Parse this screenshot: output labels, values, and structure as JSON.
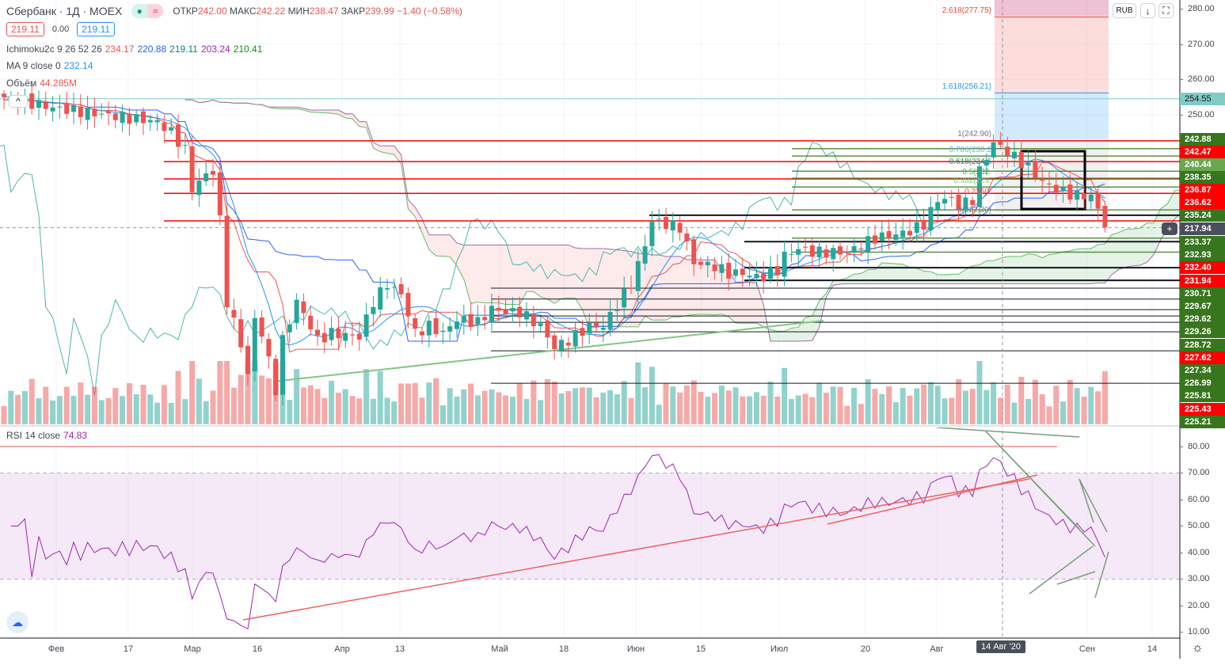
{
  "header": {
    "symbol": "Сбербанк · 1Д · MOEX",
    "open_label": "ОТКР",
    "open": "242.00",
    "high_label": "МАКС",
    "high": "242.22",
    "low_label": "МИН",
    "low": "238.47",
    "close_label": "ЗАКР",
    "close": "239.99",
    "change": "−1.40 (−0.58%)",
    "sell": "219.11",
    "spread": "0.00",
    "buy": "219.11"
  },
  "indicators": {
    "ichimoku": {
      "name": "Ichimoku2c 9 26 52 26",
      "values": [
        "234.17",
        "220.88",
        "219.11",
        "203.24",
        "210.41"
      ]
    },
    "ma": {
      "name": "MA 9 close 0",
      "value": "232.14"
    },
    "volume": {
      "name": "Объём",
      "value": "44.285M"
    },
    "rsi": {
      "name": "RSI 14 close",
      "value": "74.83"
    }
  },
  "buttons": {
    "scale_down": "↓",
    "fullscreen": "⛶",
    "currency": "RUB",
    "collapse": "^",
    "settings": "☼"
  },
  "price_axis": {
    "ticks": [
      "280.00",
      "270.00",
      "260.00",
      "250.00"
    ],
    "last_price": "217.94",
    "cyan_level": "254.55",
    "labels": [
      {
        "v": "242.88",
        "c": "#38761d"
      },
      {
        "v": "242.47",
        "c": "#ff0000"
      },
      {
        "v": "240.44",
        "c": "#6aa84f"
      },
      {
        "v": "238.35",
        "c": "#38761d"
      },
      {
        "v": "236.87",
        "c": "#ff0000"
      },
      {
        "v": "236.62",
        "c": "#ff0000"
      },
      {
        "v": "235.24",
        "c": "#38761d"
      },
      {
        "v": "233.37",
        "c": "#38761d"
      },
      {
        "v": "232.93",
        "c": "#38761d"
      },
      {
        "v": "232.40",
        "c": "#ff0000"
      },
      {
        "v": "231.94",
        "c": "#ff0000"
      },
      {
        "v": "230.71",
        "c": "#38761d"
      },
      {
        "v": "229.67",
        "c": "#38761d"
      },
      {
        "v": "229.62",
        "c": "#38761d"
      },
      {
        "v": "229.26",
        "c": "#38761d"
      },
      {
        "v": "228.72",
        "c": "#38761d"
      },
      {
        "v": "227.62",
        "c": "#ff0000"
      },
      {
        "v": "227.34",
        "c": "#38761d"
      },
      {
        "v": "226.99",
        "c": "#38761d"
      },
      {
        "v": "225.81",
        "c": "#38761d"
      },
      {
        "v": "225.43",
        "c": "#ff0000"
      },
      {
        "v": "225.21",
        "c": "#38761d"
      }
    ]
  },
  "rsi_axis": {
    "ticks": [
      "80.00",
      "70.00",
      "60.00",
      "50.00",
      "40.00",
      "30.00",
      "20.00",
      "10.00"
    ]
  },
  "time_axis": {
    "labels": [
      "Фев",
      "17",
      "Мар",
      "16",
      "Апр",
      "13",
      "Май",
      "18",
      "Июн",
      "15",
      "Июл",
      "20",
      "Авг",
      "Сен",
      "14"
    ],
    "cursor_label": "14 Авг '20"
  },
  "fibonacci": [
    "2.618(277.75)",
    "1.618(256.21)",
    "1(242.90)",
    "0.786(238.2",
    "0.618(234.6",
    "0.5(232.",
    "0.382(229.",
    "0.236(2",
    "0(222.30)"
  ],
  "colors": {
    "up": "#26a69a",
    "down": "#ef5350",
    "rsi": "#9c27b0",
    "cloud_up": "#4caf50",
    "cloud_dn": "#ef5350",
    "kijun": "#2962ff",
    "tenkan": "#ef5350"
  },
  "chart_data": {
    "type": "candlestick",
    "title": "Сбербанк · 1Д · MOEX",
    "y_range": [
      162,
      280
    ],
    "close_path": [
      [
        0,
        255
      ],
      [
        7,
        252
      ],
      [
        22,
        248
      ],
      [
        24,
        245
      ],
      [
        26,
        240
      ],
      [
        27,
        229
      ],
      [
        29,
        233
      ],
      [
        30,
        234
      ],
      [
        31,
        220
      ],
      [
        32,
        197
      ],
      [
        34,
        185
      ],
      [
        35,
        176
      ],
      [
        36,
        192
      ],
      [
        37,
        188
      ],
      [
        39,
        172
      ],
      [
        40,
        186
      ],
      [
        42,
        197
      ],
      [
        44,
        190
      ],
      [
        45,
        186
      ],
      [
        47,
        188
      ],
      [
        51,
        187
      ],
      [
        53,
        197
      ],
      [
        55,
        202
      ],
      [
        57,
        199
      ],
      [
        59,
        188
      ],
      [
        61,
        190
      ],
      [
        63,
        188
      ],
      [
        65,
        192
      ],
      [
        68,
        191
      ],
      [
        70,
        195
      ],
      [
        72,
        194
      ],
      [
        74,
        194
      ],
      [
        77,
        190
      ],
      [
        79,
        184
      ],
      [
        81,
        186
      ],
      [
        84,
        190
      ],
      [
        86,
        190
      ],
      [
        88,
        196
      ],
      [
        90,
        202
      ],
      [
        92,
        213
      ],
      [
        93,
        220
      ],
      [
        95,
        219
      ],
      [
        97,
        218
      ],
      [
        98,
        213
      ],
      [
        99,
        208
      ],
      [
        102,
        207
      ],
      [
        104,
        205
      ],
      [
        106,
        205
      ],
      [
        108,
        204
      ],
      [
        109,
        204
      ],
      [
        111,
        206
      ],
      [
        112,
        210
      ],
      [
        114,
        212
      ],
      [
        116,
        211
      ],
      [
        119,
        211
      ],
      [
        121,
        211
      ],
      [
        123,
        213
      ],
      [
        125,
        215
      ],
      [
        128,
        216
      ],
      [
        130,
        217
      ],
      [
        132,
        219
      ],
      [
        134,
        226
      ],
      [
        136,
        226
      ],
      [
        137,
        224
      ],
      [
        139,
        226
      ],
      [
        140,
        234
      ],
      [
        142,
        242
      ],
      [
        143,
        241
      ],
      [
        145,
        238
      ],
      [
        147,
        235
      ],
      [
        149,
        231
      ],
      [
        152,
        228
      ],
      [
        154,
        227
      ],
      [
        156,
        227
      ],
      [
        157,
        223
      ],
      [
        158,
        219
      ]
    ],
    "red_levels": [
      242.6,
      236.7,
      231.8,
      227.7,
      219.9
    ],
    "black_levels": [
      221.5,
      214,
      206.6,
      203,
      200.8,
      197.7,
      194.7,
      192.9,
      191.1,
      188.4,
      183,
      173.8
    ],
    "green_levels": [
      240.4,
      238.3,
      234,
      232,
      229.5,
      223,
      215,
      211
    ]
  }
}
